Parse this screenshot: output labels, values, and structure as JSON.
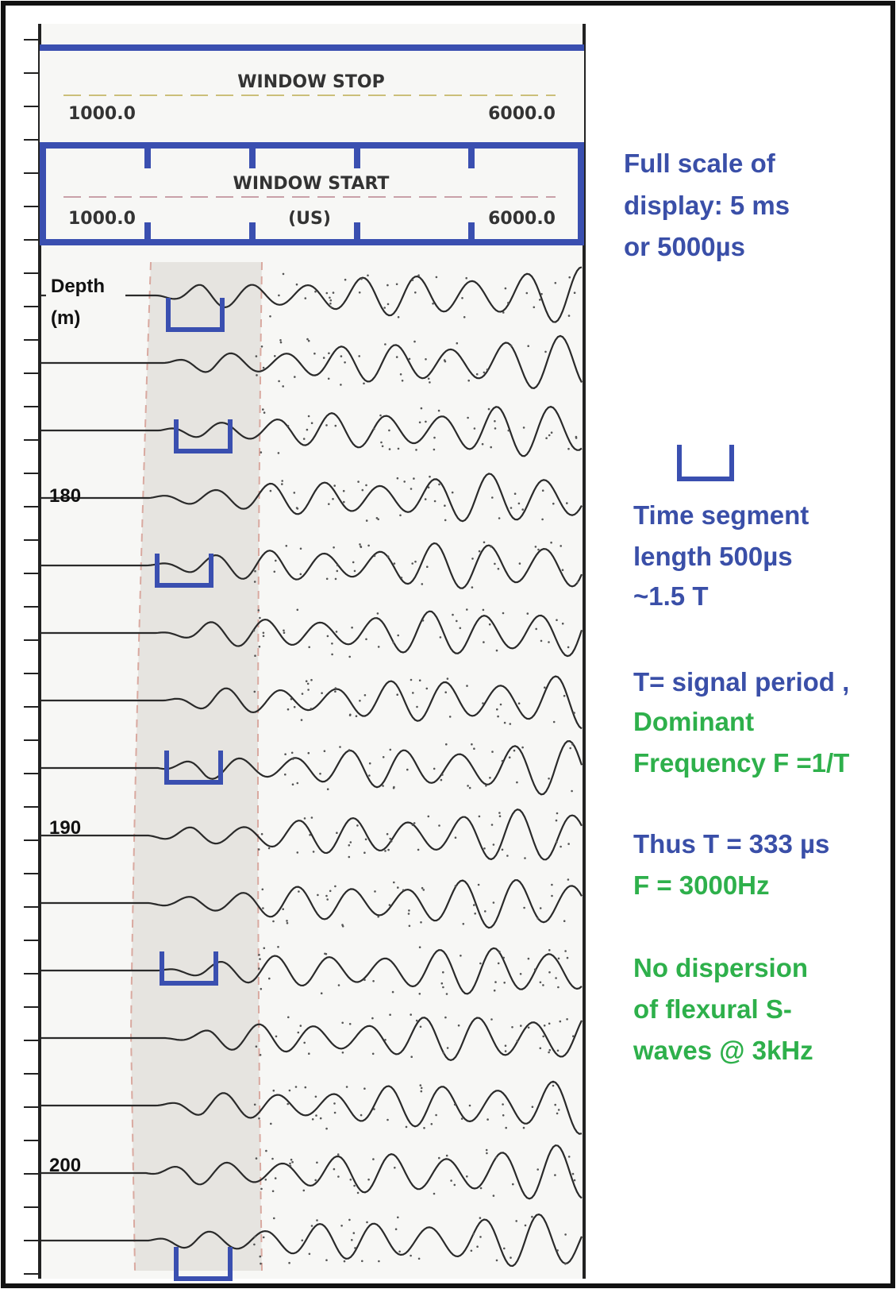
{
  "window_stop": {
    "title": "WINDOW STOP",
    "left": "1000.0",
    "right": "6000.0"
  },
  "window_start": {
    "title": "WINDOW START",
    "left": "1000.0",
    "unit": "(US)",
    "right": "6000.0"
  },
  "depth_label": [
    "Depth",
    "(m)"
  ],
  "depth_ticks": [
    "180",
    "190",
    "200"
  ],
  "annotations": [
    {
      "text": "Full scale of",
      "color": "#3a4fa8"
    },
    {
      "text": "display: 5 ms",
      "color": "#3a4fa8"
    },
    {
      "text": "or  5000µs",
      "color": "#3a4fa8"
    },
    {
      "text": "Time segment",
      "color": "#3a4fa8"
    },
    {
      "text": "length 500µs",
      "color": "#3a4fa8"
    },
    {
      "text": "~1.5 T",
      "color": "#3a4fa8"
    },
    {
      "text": "T= signal period ,",
      "color": "#3a4fa8"
    },
    {
      "text": "Dominant",
      "color": "#2eb04b"
    },
    {
      "text": "Frequency F =1/T",
      "color": "#2eb04b"
    },
    {
      "text": "Thus T = 333 µs",
      "color": "#3a4fa8"
    },
    {
      "text": "F = 3000Hz",
      "color": "#2eb04b"
    },
    {
      "text": "No dispersion",
      "color": "#2eb04b"
    },
    {
      "text": "of flexural S-",
      "color": "#2eb04b"
    },
    {
      "text": "waves @ 3kHz",
      "color": "#2eb04b"
    }
  ]
}
